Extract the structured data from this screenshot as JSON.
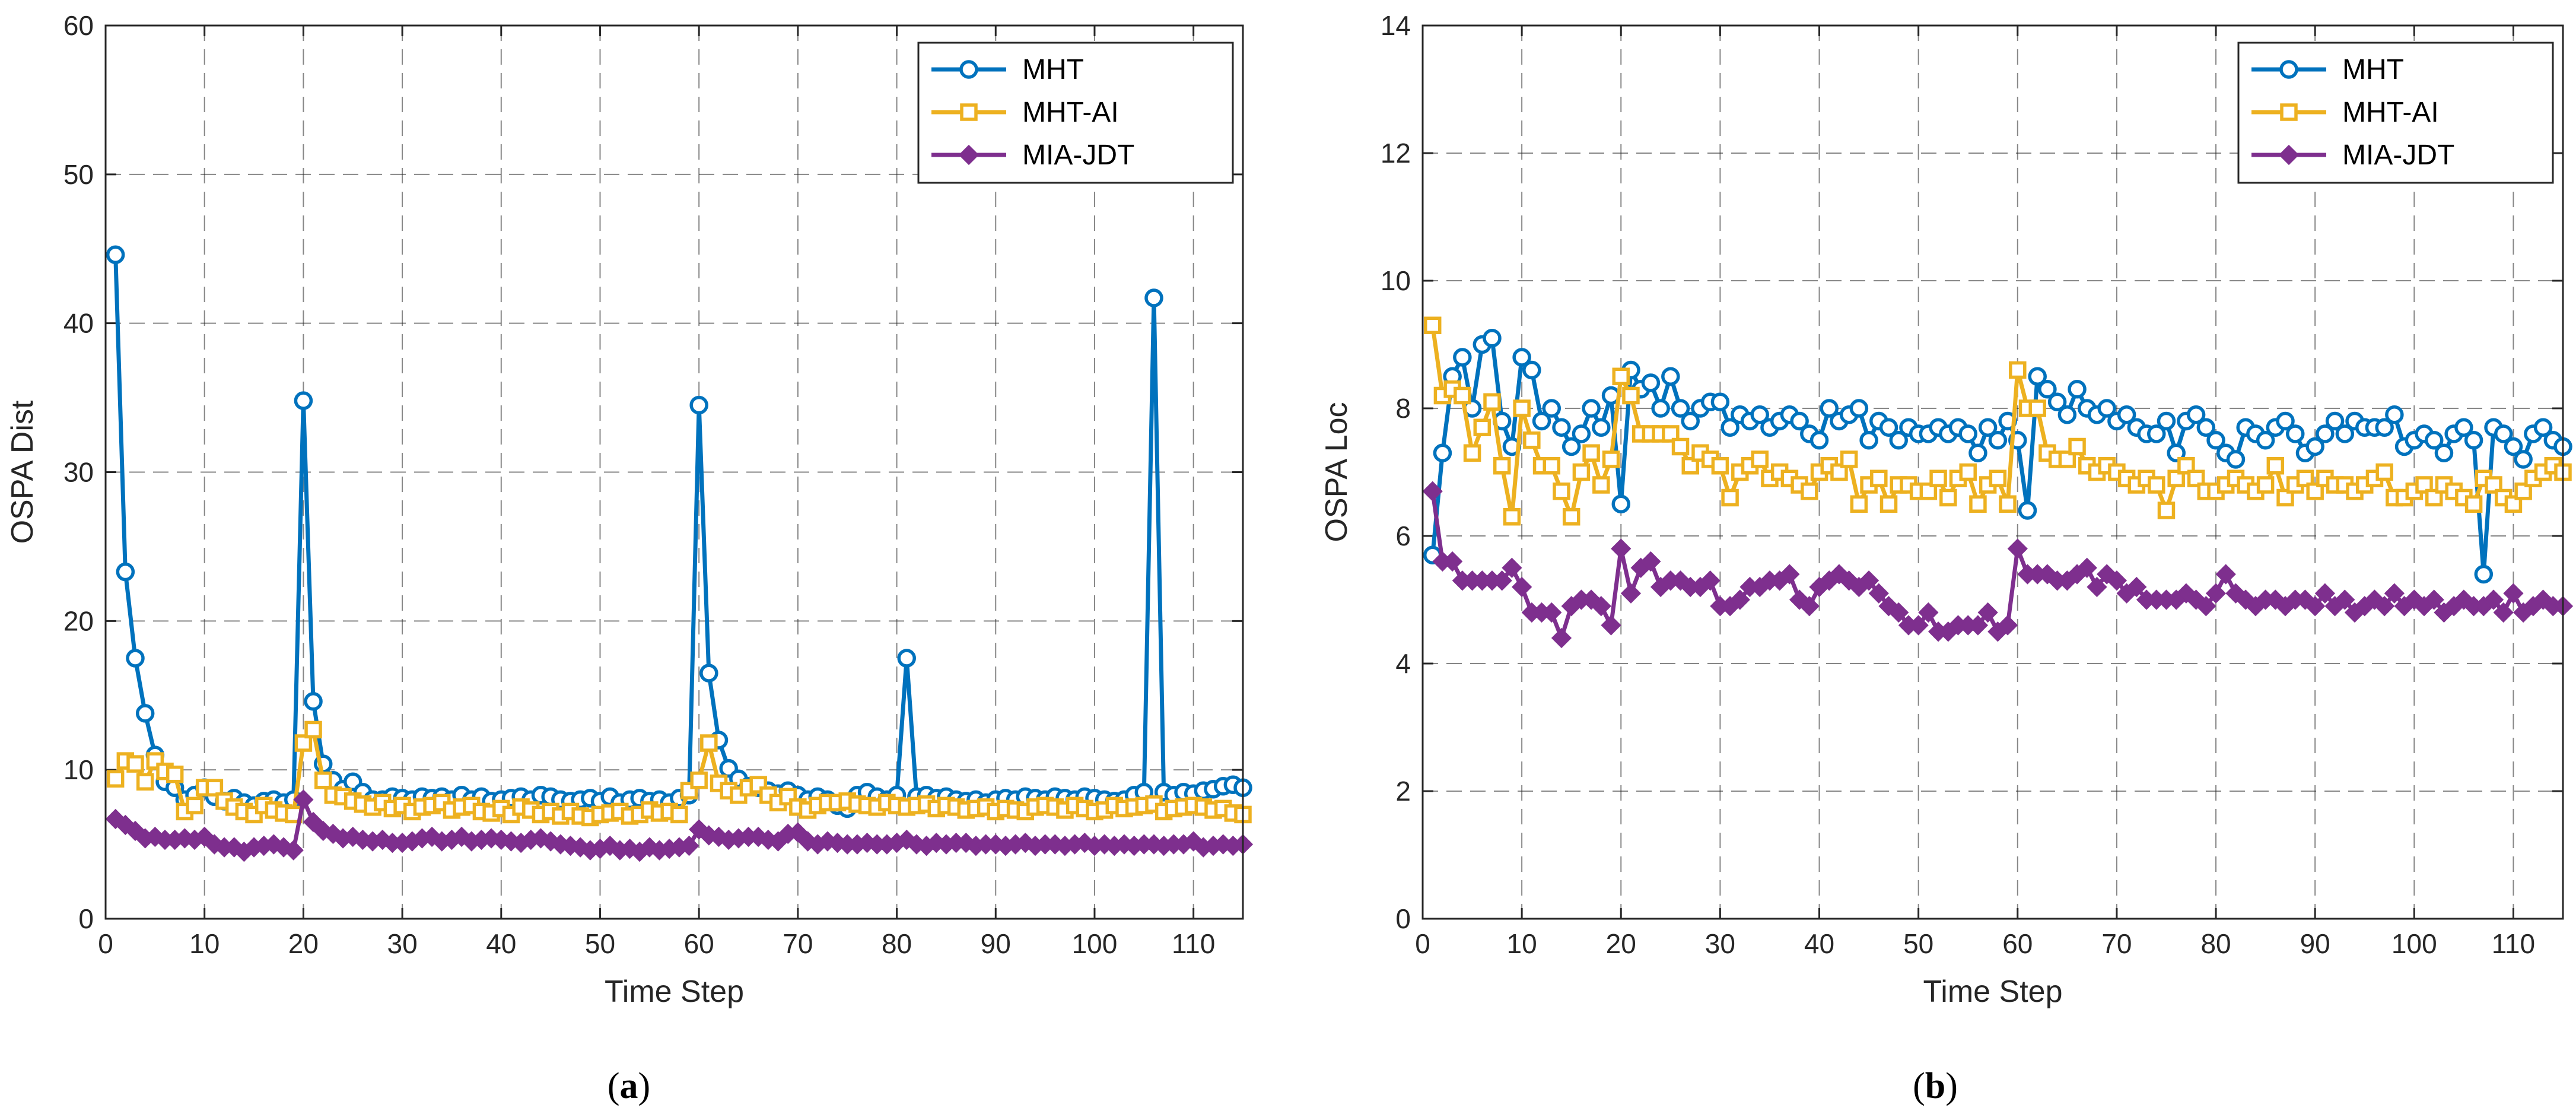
{
  "chart_data": [
    {
      "type": "line",
      "panel": "(a)",
      "caption_letter": "a",
      "title": "",
      "xlabel": "Time Step",
      "ylabel": "OSPA Dist",
      "xlim": [
        0,
        115
      ],
      "ylim": [
        0,
        60
      ],
      "xticks": [
        0,
        10,
        20,
        30,
        40,
        50,
        60,
        70,
        80,
        90,
        100,
        110
      ],
      "yticks": [
        0,
        10,
        20,
        30,
        40,
        50,
        60
      ],
      "grid": true,
      "legend_position": "top-right",
      "series": [
        {
          "name": "MHT",
          "color": "#0072BD",
          "marker": "circle",
          "values": [
            44.6,
            23.3,
            17.5,
            13.8,
            11.0,
            9.2,
            8.8,
            8.0,
            8.3,
            8.8,
            8.2,
            7.9,
            8.1,
            7.8,
            7.6,
            7.9,
            8.0,
            7.8,
            8.0,
            34.8,
            14.6,
            10.4,
            9.3,
            8.7,
            9.2,
            8.5,
            8.0,
            8.0,
            8.2,
            8.1,
            8.0,
            8.2,
            8.1,
            8.2,
            8.0,
            8.3,
            8.0,
            8.2,
            7.9,
            8.0,
            8.1,
            8.2,
            8.0,
            8.3,
            8.2,
            8.0,
            7.9,
            8.0,
            8.1,
            7.9,
            8.2,
            7.8,
            8.0,
            8.1,
            7.9,
            8.0,
            7.8,
            8.1,
            8.3,
            34.5,
            16.5,
            12.0,
            10.1,
            9.4,
            8.9,
            8.8,
            8.6,
            8.4,
            8.6,
            8.3,
            8.0,
            8.2,
            8.0,
            7.6,
            7.4,
            8.3,
            8.5,
            8.2,
            8.0,
            8.3,
            17.5,
            8.2,
            8.3,
            8.1,
            8.2,
            8.0,
            7.9,
            8.0,
            7.8,
            8.0,
            8.1,
            8.0,
            8.2,
            8.1,
            8.0,
            8.2,
            8.1,
            8.0,
            8.2,
            8.1,
            8.0,
            7.9,
            8.0,
            8.3,
            8.5,
            41.7,
            8.5,
            8.3,
            8.5,
            8.4,
            8.6,
            8.7,
            8.9,
            9.0,
            8.8
          ]
        },
        {
          "name": "MHT-AI",
          "color": "#EDB120",
          "marker": "square",
          "values": [
            9.4,
            10.6,
            10.4,
            9.2,
            10.6,
            9.9,
            9.7,
            7.2,
            7.6,
            8.8,
            8.8,
            7.9,
            7.5,
            7.2,
            7.0,
            7.6,
            7.3,
            7.1,
            7.0,
            11.8,
            12.7,
            9.3,
            8.3,
            8.2,
            7.9,
            7.7,
            7.5,
            7.8,
            7.4,
            7.6,
            7.2,
            7.5,
            7.6,
            7.8,
            7.3,
            7.5,
            7.6,
            7.2,
            7.1,
            7.4,
            7.0,
            7.5,
            7.3,
            7.0,
            7.2,
            6.9,
            7.2,
            6.9,
            6.8,
            7.0,
            7.1,
            7.2,
            6.9,
            7.0,
            7.3,
            7.1,
            7.2,
            7.0,
            8.6,
            9.3,
            11.8,
            9.1,
            8.6,
            8.3,
            8.8,
            9.0,
            8.3,
            7.8,
            8.2,
            7.5,
            7.3,
            7.6,
            7.8,
            7.8,
            7.9,
            7.7,
            7.6,
            7.5,
            7.8,
            7.6,
            7.5,
            7.6,
            7.7,
            7.4,
            7.6,
            7.5,
            7.3,
            7.4,
            7.5,
            7.2,
            7.4,
            7.3,
            7.2,
            7.5,
            7.6,
            7.5,
            7.3,
            7.6,
            7.4,
            7.2,
            7.3,
            7.6,
            7.4,
            7.5,
            7.6,
            7.7,
            7.2,
            7.4,
            7.5,
            7.6,
            7.5,
            7.3,
            7.4,
            7.1,
            7.0
          ]
        },
        {
          "name": "MIA-JDT",
          "color": "#7E2F8E",
          "marker": "diamond",
          "values": [
            6.7,
            6.3,
            5.9,
            5.4,
            5.5,
            5.3,
            5.3,
            5.4,
            5.3,
            5.5,
            5.0,
            4.8,
            4.8,
            4.5,
            4.8,
            4.9,
            5.0,
            4.8,
            4.6,
            8.0,
            6.5,
            5.9,
            5.7,
            5.4,
            5.5,
            5.3,
            5.2,
            5.3,
            5.1,
            5.1,
            5.2,
            5.4,
            5.5,
            5.2,
            5.3,
            5.5,
            5.2,
            5.3,
            5.4,
            5.3,
            5.2,
            5.1,
            5.3,
            5.4,
            5.2,
            5.0,
            4.9,
            4.8,
            4.6,
            4.7,
            4.9,
            4.6,
            4.7,
            4.5,
            4.8,
            4.6,
            4.7,
            4.8,
            4.9,
            6.0,
            5.6,
            5.5,
            5.3,
            5.4,
            5.5,
            5.5,
            5.3,
            5.2,
            5.7,
            5.8,
            5.2,
            5.0,
            5.2,
            5.1,
            5.0,
            5.0,
            5.1,
            5.0,
            5.0,
            5.1,
            5.3,
            5.0,
            4.9,
            5.1,
            5.0,
            5.1,
            5.1,
            4.9,
            5.0,
            5.0,
            4.9,
            5.0,
            5.1,
            4.9,
            5.0,
            5.0,
            4.9,
            5.0,
            5.1,
            4.9,
            5.0,
            4.9,
            5.0,
            4.9,
            5.0,
            5.0,
            4.9,
            5.0,
            5.0,
            5.2,
            4.8,
            4.9,
            5.0,
            4.9,
            5.0
          ]
        }
      ]
    },
    {
      "type": "line",
      "panel": "(b)",
      "caption_letter": "b",
      "title": "",
      "xlabel": "Time Step",
      "ylabel": "OSPA Loc",
      "xlim": [
        0,
        115
      ],
      "ylim": [
        0,
        14
      ],
      "xticks": [
        0,
        10,
        20,
        30,
        40,
        50,
        60,
        70,
        80,
        90,
        100,
        110
      ],
      "yticks": [
        0,
        2,
        4,
        6,
        8,
        10,
        12,
        14
      ],
      "grid": true,
      "legend_position": "top-right",
      "series": [
        {
          "name": "MHT",
          "color": "#0072BD",
          "marker": "circle",
          "values": [
            5.7,
            7.3,
            8.5,
            8.8,
            8.0,
            9.0,
            9.1,
            7.8,
            7.4,
            8.8,
            8.6,
            7.8,
            8.0,
            7.7,
            7.4,
            7.6,
            8.0,
            7.7,
            8.2,
            6.5,
            8.6,
            8.3,
            8.4,
            8.0,
            8.5,
            8.0,
            7.8,
            8.0,
            8.1,
            8.1,
            7.7,
            7.9,
            7.8,
            7.9,
            7.7,
            7.8,
            7.9,
            7.8,
            7.6,
            7.5,
            8.0,
            7.8,
            7.9,
            8.0,
            7.5,
            7.8,
            7.7,
            7.5,
            7.7,
            7.6,
            7.6,
            7.7,
            7.6,
            7.7,
            7.6,
            7.3,
            7.7,
            7.5,
            7.8,
            7.5,
            6.4,
            8.5,
            8.3,
            8.1,
            7.9,
            8.3,
            8.0,
            7.9,
            8.0,
            7.8,
            7.9,
            7.7,
            7.6,
            7.6,
            7.8,
            7.3,
            7.8,
            7.9,
            7.7,
            7.5,
            7.3,
            7.2,
            7.7,
            7.6,
            7.5,
            7.7,
            7.8,
            7.6,
            7.3,
            7.4,
            7.6,
            7.8,
            7.6,
            7.8,
            7.7,
            7.7,
            7.7,
            7.9,
            7.4,
            7.5,
            7.6,
            7.5,
            7.3,
            7.6,
            7.7,
            7.5,
            5.4,
            7.7,
            7.6,
            7.4,
            7.2,
            7.6,
            7.7,
            7.5,
            7.4
          ]
        },
        {
          "name": "MHT-AI",
          "color": "#EDB120",
          "marker": "square",
          "values": [
            9.3,
            8.2,
            8.3,
            8.2,
            7.3,
            7.7,
            8.1,
            7.1,
            6.3,
            8.0,
            7.5,
            7.1,
            7.1,
            6.7,
            6.3,
            7.0,
            7.3,
            6.8,
            7.2,
            8.5,
            8.2,
            7.6,
            7.6,
            7.6,
            7.6,
            7.4,
            7.1,
            7.3,
            7.2,
            7.1,
            6.6,
            7.0,
            7.1,
            7.2,
            6.9,
            7.0,
            6.9,
            6.8,
            6.7,
            7.0,
            7.1,
            7.0,
            7.2,
            6.5,
            6.8,
            6.9,
            6.5,
            6.8,
            6.8,
            6.7,
            6.7,
            6.9,
            6.6,
            6.9,
            7.0,
            6.5,
            6.8,
            6.9,
            6.5,
            8.6,
            8.0,
            8.0,
            7.3,
            7.2,
            7.2,
            7.4,
            7.1,
            7.0,
            7.1,
            7.0,
            6.9,
            6.8,
            6.9,
            6.8,
            6.4,
            6.9,
            7.1,
            6.9,
            6.7,
            6.7,
            6.8,
            6.9,
            6.8,
            6.7,
            6.8,
            7.1,
            6.6,
            6.8,
            6.9,
            6.7,
            6.9,
            6.8,
            6.8,
            6.7,
            6.8,
            6.9,
            7.0,
            6.6,
            6.6,
            6.7,
            6.8,
            6.6,
            6.8,
            6.7,
            6.6,
            6.5,
            6.9,
            6.8,
            6.6,
            6.5,
            6.7,
            6.9,
            7.0,
            7.1,
            7.0
          ]
        },
        {
          "name": "MIA-JDT",
          "color": "#7E2F8E",
          "marker": "diamond",
          "values": [
            6.7,
            5.6,
            5.6,
            5.3,
            5.3,
            5.3,
            5.3,
            5.3,
            5.5,
            5.2,
            4.8,
            4.8,
            4.8,
            4.4,
            4.9,
            5.0,
            5.0,
            4.9,
            4.6,
            5.8,
            5.1,
            5.5,
            5.6,
            5.2,
            5.3,
            5.3,
            5.2,
            5.2,
            5.3,
            4.9,
            4.9,
            5.0,
            5.2,
            5.2,
            5.3,
            5.3,
            5.4,
            5.0,
            4.9,
            5.2,
            5.3,
            5.4,
            5.3,
            5.2,
            5.3,
            5.1,
            4.9,
            4.8,
            4.6,
            4.6,
            4.8,
            4.5,
            4.5,
            4.6,
            4.6,
            4.6,
            4.8,
            4.5,
            4.6,
            5.8,
            5.4,
            5.4,
            5.4,
            5.3,
            5.3,
            5.4,
            5.5,
            5.2,
            5.4,
            5.3,
            5.1,
            5.2,
            5.0,
            5.0,
            5.0,
            5.0,
            5.1,
            5.0,
            4.9,
            5.1,
            5.4,
            5.1,
            5.0,
            4.9,
            5.0,
            5.0,
            4.9,
            5.0,
            5.0,
            4.9,
            5.1,
            4.9,
            5.0,
            4.8,
            4.9,
            5.0,
            4.9,
            5.1,
            4.9,
            5.0,
            4.9,
            5.0,
            4.8,
            4.9,
            5.0,
            4.9,
            4.9,
            5.0,
            4.8,
            5.1,
            4.8,
            4.9,
            5.0,
            4.9,
            4.9
          ]
        }
      ]
    }
  ]
}
